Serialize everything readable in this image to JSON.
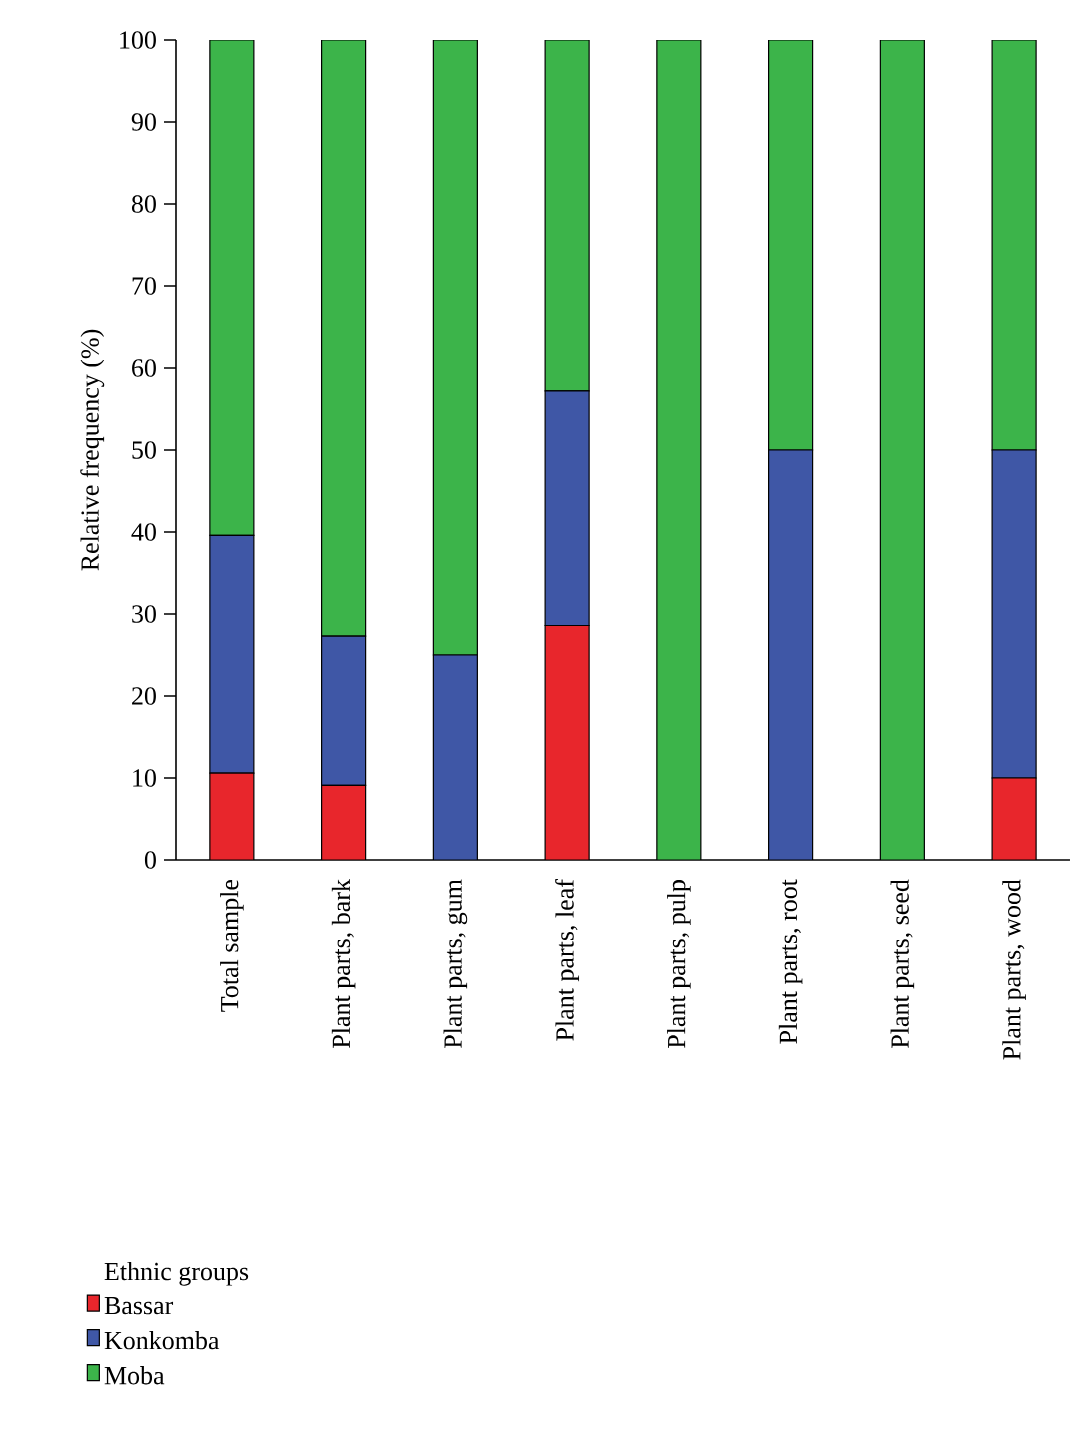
{
  "chart_data": {
    "type": "bar",
    "stacked": true,
    "ylabel": "Relative frequency (%)",
    "legend_title": "Ethnic groups",
    "legend": "bottom left",
    "categories": [
      "Total sample",
      "Plant parts, bark",
      "Plant parts, gum",
      "Plant parts, leaf",
      "Plant parts, pulp",
      "Plant parts, root",
      "Plant parts, seed",
      "Plant parts, wood"
    ],
    "series": [
      {
        "name": "Bassar",
        "color": "#e8262c",
        "values": [
          10.6,
          9.1,
          0,
          28.6,
          0,
          0,
          0,
          10
        ]
      },
      {
        "name": "Konkomba",
        "color": "#3f57a6",
        "values": [
          29,
          18.2,
          25,
          28.6,
          0,
          50,
          0,
          40
        ]
      },
      {
        "name": "Moba",
        "color": "#3cb44a",
        "values": [
          60.4,
          72.7,
          75,
          42.8,
          100,
          50,
          100,
          50
        ]
      }
    ],
    "ylim": [
      0,
      100
    ],
    "yticks": [
      0,
      10,
      20,
      30,
      40,
      50,
      60,
      70,
      80,
      90,
      100
    ]
  }
}
